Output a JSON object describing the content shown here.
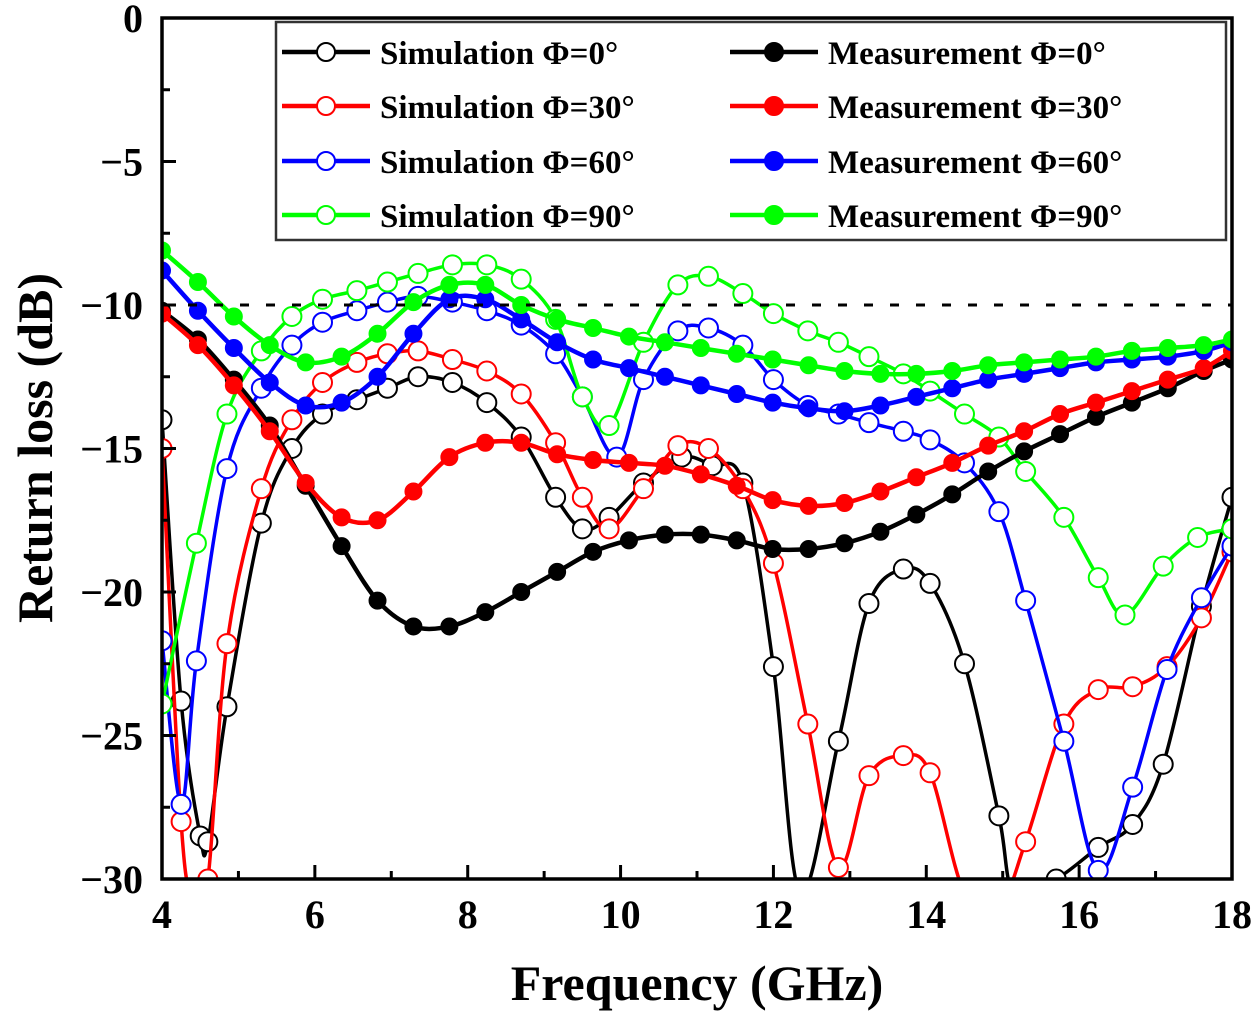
{
  "chart_data": {
    "type": "line",
    "title": "",
    "xlabel": "Frequency (GHz)",
    "ylabel": "Return loss (dB)",
    "xlim": [
      4,
      18
    ],
    "ylim": [
      -30,
      0
    ],
    "xticks": [
      4,
      6,
      8,
      10,
      12,
      14,
      16,
      18
    ],
    "xtick_labels": [
      "4",
      "6",
      "8",
      "10",
      "12",
      "14",
      "16",
      "18"
    ],
    "yticks": [
      0,
      -5,
      -10,
      -15,
      -20,
      -25,
      -30
    ],
    "ytick_labels": [
      "0",
      "−5",
      "−10",
      "−15",
      "−20",
      "−25",
      "−30"
    ],
    "grid": false,
    "legend_position": "top-right",
    "reference_line": {
      "y": -10,
      "style": "dashed",
      "color": "#000000"
    },
    "series": [
      {
        "name": "Simulation Φ=0°",
        "color": "#000000",
        "marker": "open-circle",
        "x": [
          4.0,
          4.25,
          4.5,
          4.6,
          4.85,
          5.3,
          5.7,
          6.1,
          6.55,
          6.95,
          7.35,
          7.8,
          8.25,
          8.7,
          9.15,
          9.5,
          9.85,
          10.3,
          10.8,
          11.2,
          11.6,
          12.0,
          12.35,
          12.85,
          13.25,
          13.7,
          14.05,
          14.5,
          14.95,
          15.15,
          15.7,
          16.25,
          16.7,
          17.1,
          17.6,
          18.0
        ],
        "y": [
          -14.0,
          -23.8,
          -28.5,
          -28.7,
          -24.0,
          -17.6,
          -15.0,
          -13.8,
          -13.3,
          -12.9,
          -12.5,
          -12.7,
          -13.4,
          -14.6,
          -16.7,
          -17.8,
          -17.4,
          -16.2,
          -15.3,
          -15.6,
          -16.2,
          -22.6,
          -30.5,
          -25.2,
          -20.4,
          -19.2,
          -19.7,
          -22.5,
          -27.8,
          -30.5,
          -30.0,
          -28.9,
          -28.1,
          -26.0,
          -20.5,
          -16.7
        ]
      },
      {
        "name": "Simulation Φ=30°",
        "color": "#ff0000",
        "marker": "open-circle",
        "x": [
          4.0,
          4.25,
          4.4,
          4.6,
          4.85,
          5.3,
          5.7,
          6.1,
          6.55,
          6.95,
          7.35,
          7.8,
          8.25,
          8.7,
          9.15,
          9.5,
          9.85,
          10.3,
          10.75,
          11.15,
          11.6,
          12.0,
          12.45,
          12.85,
          13.25,
          13.7,
          14.05,
          14.5,
          14.95,
          15.3,
          15.8,
          16.25,
          16.7,
          17.15,
          17.6,
          18.0
        ],
        "y": [
          -15.0,
          -28.0,
          -30.5,
          -30.0,
          -21.8,
          -16.4,
          -14.0,
          -12.7,
          -12.0,
          -11.7,
          -11.6,
          -11.9,
          -12.3,
          -13.1,
          -14.8,
          -16.7,
          -17.8,
          -16.4,
          -14.9,
          -15.0,
          -16.4,
          -19.0,
          -24.6,
          -29.6,
          -26.4,
          -25.7,
          -26.3,
          -30.5,
          -31.0,
          -28.7,
          -24.6,
          -23.4,
          -23.3,
          -22.6,
          -20.9,
          -18.6
        ]
      },
      {
        "name": "Simulation Φ=60°",
        "color": "#0000ff",
        "marker": "open-circle",
        "x": [
          4.0,
          4.25,
          4.45,
          4.85,
          5.3,
          5.7,
          6.1,
          6.55,
          6.95,
          7.35,
          7.8,
          8.25,
          8.7,
          9.15,
          9.5,
          9.95,
          10.3,
          10.75,
          11.15,
          11.6,
          12.0,
          12.45,
          12.85,
          13.25,
          13.7,
          14.05,
          14.5,
          14.95,
          15.3,
          15.8,
          16.25,
          16.7,
          17.15,
          17.6,
          18.0
        ],
        "y": [
          -21.7,
          -27.4,
          -22.4,
          -15.7,
          -12.9,
          -11.4,
          -10.6,
          -10.2,
          -9.9,
          -9.7,
          -9.9,
          -10.2,
          -10.7,
          -11.7,
          -13.2,
          -15.3,
          -12.6,
          -10.9,
          -10.8,
          -11.4,
          -12.6,
          -13.5,
          -13.8,
          -14.1,
          -14.4,
          -14.7,
          -15.5,
          -17.2,
          -20.3,
          -25.2,
          -29.7,
          -26.8,
          -22.7,
          -20.2,
          -18.4
        ]
      },
      {
        "name": "Simulation Φ=90°",
        "color": "#00ff00",
        "marker": "open-circle",
        "x": [
          4.0,
          4.45,
          4.85,
          5.3,
          5.7,
          6.1,
          6.55,
          6.95,
          7.35,
          7.8,
          8.25,
          8.7,
          9.15,
          9.5,
          9.85,
          10.3,
          10.75,
          11.15,
          11.6,
          12.0,
          12.45,
          12.85,
          13.25,
          13.7,
          14.05,
          14.5,
          14.95,
          15.3,
          15.8,
          16.25,
          16.6,
          17.1,
          17.55,
          18.0
        ],
        "y": [
          -23.9,
          -18.3,
          -13.8,
          -11.6,
          -10.4,
          -9.8,
          -9.5,
          -9.2,
          -8.9,
          -8.6,
          -8.6,
          -9.1,
          -10.5,
          -13.2,
          -14.2,
          -11.3,
          -9.3,
          -9.0,
          -9.6,
          -10.3,
          -10.9,
          -11.3,
          -11.8,
          -12.4,
          -13.0,
          -13.8,
          -14.6,
          -15.8,
          -17.4,
          -19.5,
          -20.8,
          -19.1,
          -18.1,
          -17.8
        ]
      },
      {
        "name": "Measurement Φ=0°",
        "color": "#000000",
        "marker": "filled-circle",
        "x": [
          4.0,
          4.47,
          4.94,
          5.41,
          5.88,
          6.35,
          6.82,
          7.29,
          7.76,
          8.23,
          8.7,
          9.17,
          9.64,
          10.11,
          10.58,
          11.05,
          11.52,
          11.99,
          12.46,
          12.93,
          13.4,
          13.87,
          14.34,
          14.81,
          15.28,
          15.75,
          16.22,
          16.69,
          17.16,
          17.63,
          18.0
        ],
        "y": [
          -10.2,
          -11.2,
          -12.6,
          -14.2,
          -16.3,
          -18.4,
          -20.3,
          -21.2,
          -21.2,
          -20.7,
          -20.0,
          -19.3,
          -18.6,
          -18.2,
          -18.0,
          -18.0,
          -18.2,
          -18.5,
          -18.5,
          -18.3,
          -17.9,
          -17.3,
          -16.6,
          -15.8,
          -15.1,
          -14.5,
          -13.9,
          -13.4,
          -12.9,
          -12.3,
          -11.9
        ]
      },
      {
        "name": "Measurement Φ=30°",
        "color": "#ff0000",
        "marker": "filled-circle",
        "x": [
          4.0,
          4.47,
          4.94,
          5.41,
          5.88,
          6.35,
          6.82,
          7.29,
          7.76,
          8.23,
          8.7,
          9.17,
          9.64,
          10.11,
          10.58,
          11.05,
          11.52,
          11.99,
          12.46,
          12.93,
          13.4,
          13.87,
          14.34,
          14.81,
          15.28,
          15.75,
          16.22,
          16.69,
          17.16,
          17.63,
          18.0
        ],
        "y": [
          -10.3,
          -11.4,
          -12.8,
          -14.4,
          -16.2,
          -17.4,
          -17.5,
          -16.5,
          -15.3,
          -14.8,
          -14.8,
          -15.2,
          -15.4,
          -15.5,
          -15.6,
          -15.9,
          -16.3,
          -16.8,
          -17.0,
          -16.9,
          -16.5,
          -16.0,
          -15.5,
          -14.9,
          -14.4,
          -13.8,
          -13.4,
          -13.0,
          -12.6,
          -12.2,
          -11.6
        ]
      },
      {
        "name": "Measurement Φ=60°",
        "color": "#0000ff",
        "marker": "filled-circle",
        "x": [
          4.0,
          4.47,
          4.94,
          5.41,
          5.88,
          6.35,
          6.82,
          7.29,
          7.76,
          8.23,
          8.7,
          9.17,
          9.64,
          10.11,
          10.58,
          11.05,
          11.52,
          11.99,
          12.46,
          12.93,
          13.4,
          13.87,
          14.34,
          14.81,
          15.28,
          15.75,
          16.22,
          16.69,
          17.16,
          17.63,
          18.0
        ],
        "y": [
          -8.8,
          -10.2,
          -11.5,
          -12.7,
          -13.5,
          -13.4,
          -12.5,
          -11.0,
          -9.8,
          -9.8,
          -10.5,
          -11.3,
          -11.9,
          -12.2,
          -12.5,
          -12.8,
          -13.1,
          -13.4,
          -13.6,
          -13.7,
          -13.5,
          -13.2,
          -12.9,
          -12.6,
          -12.4,
          -12.2,
          -12.0,
          -11.9,
          -11.8,
          -11.6,
          -11.3
        ]
      },
      {
        "name": "Measurement Φ=90°",
        "color": "#00ff00",
        "marker": "filled-circle",
        "x": [
          4.0,
          4.47,
          4.94,
          5.41,
          5.88,
          6.35,
          6.82,
          7.29,
          7.76,
          8.23,
          8.7,
          9.17,
          9.64,
          10.11,
          10.58,
          11.05,
          11.52,
          11.99,
          12.46,
          12.93,
          13.4,
          13.87,
          14.34,
          14.81,
          15.28,
          15.75,
          16.22,
          16.69,
          17.16,
          17.63,
          18.0
        ],
        "y": [
          -8.1,
          -9.2,
          -10.4,
          -11.4,
          -12.0,
          -11.8,
          -11.0,
          -9.9,
          -9.3,
          -9.3,
          -10.0,
          -10.5,
          -10.8,
          -11.1,
          -11.3,
          -11.5,
          -11.7,
          -11.9,
          -12.1,
          -12.3,
          -12.4,
          -12.4,
          -12.3,
          -12.1,
          -12.0,
          -11.9,
          -11.8,
          -11.6,
          -11.5,
          -11.4,
          -11.2
        ]
      }
    ]
  },
  "legend": {
    "columns": [
      [
        "Simulation Φ=0°",
        "Simulation Φ=30°",
        "Simulation Φ=60°",
        "Simulation Φ=90°"
      ],
      [
        "Measurement Φ=0°",
        "Measurement Φ=30°",
        "Measurement Φ=60°",
        "Measurement Φ=90°"
      ]
    ]
  }
}
